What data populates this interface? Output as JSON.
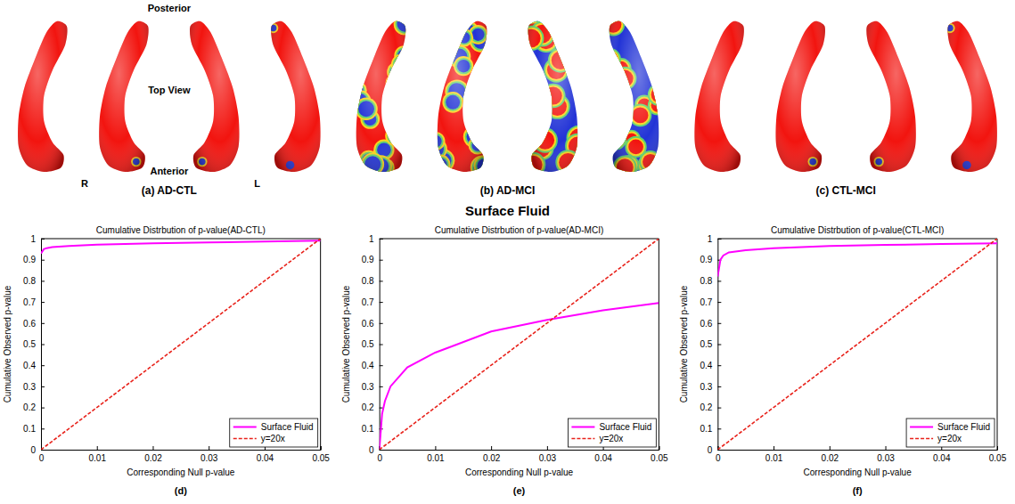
{
  "surfaces": {
    "orientation_labels": {
      "posterior": "Posterior",
      "top_view": "Top View",
      "anterior": "Anterior",
      "right": "R",
      "left": "L"
    },
    "panels": [
      {
        "caption": "(a) AD-CTL"
      },
      {
        "caption": "(b) AD-MCI"
      },
      {
        "caption": "(c) CTL-MCI"
      }
    ]
  },
  "heading": "Surface Fluid",
  "chart_data": [
    {
      "type": "line",
      "title": "Cumulative Distrbution of p-value(AD-CTL)",
      "x_label": "Corresponding Null p-value",
      "y_label": "Cumulative Observed p-value",
      "caption": "(d)",
      "x": [
        0,
        0.0005,
        0.001,
        0.002,
        0.005,
        0.01,
        0.02,
        0.03,
        0.04,
        0.05
      ],
      "series": [
        {
          "name": "Surface Fluid",
          "color": "#ff00ff",
          "line_style": "solid",
          "values": [
            0.93,
            0.95,
            0.955,
            0.96,
            0.965,
            0.972,
            0.978,
            0.982,
            0.986,
            0.99
          ]
        },
        {
          "name": "y=20x",
          "color": "#e8221b",
          "line_style": "dashed",
          "values": [
            0,
            0.01,
            0.02,
            0.04,
            0.1,
            0.2,
            0.4,
            0.6,
            0.8,
            1.0
          ]
        }
      ],
      "xlim": [
        0,
        0.05
      ],
      "ylim": [
        0,
        1
      ],
      "xticks": [
        0,
        0.01,
        0.02,
        0.03,
        0.04,
        0.05
      ],
      "yticks": [
        0,
        0.1,
        0.2,
        0.3,
        0.4,
        0.5,
        0.6,
        0.7,
        0.8,
        0.9,
        1
      ],
      "legend": "lower right",
      "grid": false
    },
    {
      "type": "line",
      "title": "Cumulative Distrbution of p-value(AD-MCI)",
      "x_label": "Corresponding Null p-value",
      "y_label": "Cumulative Observed p-value",
      "caption": "(e)",
      "x": [
        0,
        0.0005,
        0.001,
        0.002,
        0.005,
        0.01,
        0.02,
        0.03,
        0.04,
        0.05
      ],
      "series": [
        {
          "name": "Surface Fluid",
          "color": "#ff00ff",
          "line_style": "solid",
          "values": [
            0,
            0.17,
            0.23,
            0.3,
            0.39,
            0.46,
            0.56,
            0.615,
            0.66,
            0.695
          ]
        },
        {
          "name": "y=20x",
          "color": "#e8221b",
          "line_style": "dashed",
          "values": [
            0,
            0.01,
            0.02,
            0.04,
            0.1,
            0.2,
            0.4,
            0.6,
            0.8,
            1.0
          ]
        }
      ],
      "xlim": [
        0,
        0.05
      ],
      "ylim": [
        0,
        1
      ],
      "xticks": [
        0,
        0.01,
        0.02,
        0.03,
        0.04,
        0.05
      ],
      "yticks": [
        0,
        0.1,
        0.2,
        0.3,
        0.4,
        0.5,
        0.6,
        0.7,
        0.8,
        0.9,
        1
      ],
      "legend": "lower right",
      "grid": false
    },
    {
      "type": "line",
      "title": "Cumulative Distrbution of p-value(CTL-MCI)",
      "x_label": "Corresponding Null p-value",
      "y_label": "Cumulative Observed p-value",
      "caption": "(f)",
      "x": [
        0,
        0.0005,
        0.001,
        0.002,
        0.005,
        0.01,
        0.02,
        0.03,
        0.04,
        0.05
      ],
      "series": [
        {
          "name": "Surface Fluid",
          "color": "#ff00ff",
          "line_style": "solid",
          "values": [
            0.82,
            0.9,
            0.92,
            0.935,
            0.945,
            0.955,
            0.965,
            0.97,
            0.975,
            0.978
          ]
        },
        {
          "name": "y=20x",
          "color": "#e8221b",
          "line_style": "dashed",
          "values": [
            0,
            0.01,
            0.02,
            0.04,
            0.1,
            0.2,
            0.4,
            0.6,
            0.8,
            1.0
          ]
        }
      ],
      "xlim": [
        0,
        0.05
      ],
      "ylim": [
        0,
        1
      ],
      "xticks": [
        0,
        0.01,
        0.02,
        0.03,
        0.04,
        0.05
      ],
      "yticks": [
        0,
        0.1,
        0.2,
        0.3,
        0.4,
        0.5,
        0.6,
        0.7,
        0.8,
        0.9,
        1
      ],
      "legend": "lower right",
      "grid": false
    }
  ]
}
